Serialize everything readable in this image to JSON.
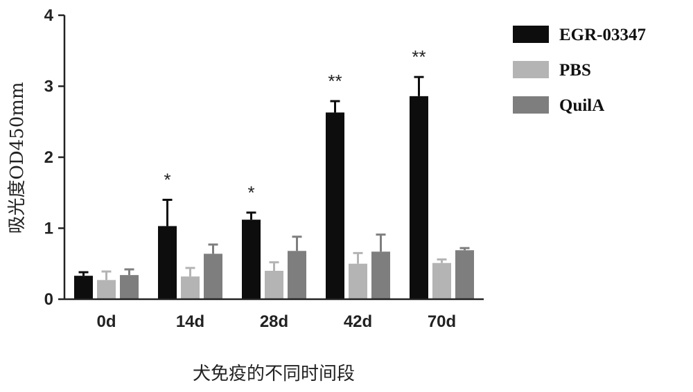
{
  "chart_data": {
    "type": "bar",
    "title": "",
    "xlabel": "犬免疫的不同时间段",
    "ylabel": "吸光度OD450mm",
    "ylim": [
      0,
      4
    ],
    "yticks": [
      "0",
      "1",
      "2",
      "3",
      "4"
    ],
    "categories": [
      "0d",
      "14d",
      "28d",
      "42d",
      "70d"
    ],
    "series": [
      {
        "name": "EGR-03347",
        "color": "#0d0d0d",
        "values": [
          0.33,
          1.03,
          1.12,
          2.63,
          2.86
        ],
        "errors": [
          0.05,
          0.37,
          0.1,
          0.16,
          0.27
        ],
        "significance": [
          "",
          "*",
          "*",
          "**",
          "**"
        ]
      },
      {
        "name": "PBS",
        "color": "#b4b4b4",
        "values": [
          0.27,
          0.32,
          0.4,
          0.5,
          0.51
        ],
        "errors": [
          0.12,
          0.12,
          0.12,
          0.15,
          0.05
        ],
        "significance": [
          "",
          "",
          "",
          "",
          ""
        ]
      },
      {
        "name": "QuilA",
        "color": "#7e7e7e",
        "values": [
          0.34,
          0.64,
          0.68,
          0.67,
          0.69
        ],
        "errors": [
          0.08,
          0.13,
          0.2,
          0.24,
          0.03
        ],
        "significance": [
          "",
          "",
          "",
          "",
          ""
        ]
      }
    ],
    "legend_position": "top-right",
    "grid": false
  }
}
